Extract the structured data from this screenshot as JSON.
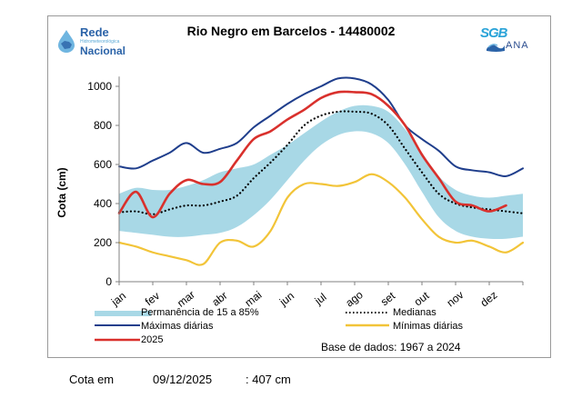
{
  "logos": {
    "left": {
      "line1": "Rede",
      "line2": "Hidrometeorológica",
      "line3": "Nacional"
    },
    "right": {
      "line1": "SGB",
      "line2": "ANA"
    }
  },
  "chart_data": {
    "type": "line",
    "title": "Rio Negro em Barcelos - 14480002",
    "xlabel": "",
    "ylabel": "Cota (cm)",
    "ylim": [
      0,
      1100
    ],
    "yticks": [
      0,
      200,
      400,
      600,
      800,
      1000
    ],
    "xlim": [
      0,
      12
    ],
    "month_labels": [
      "jan",
      "fev",
      "mar",
      "abr",
      "mai",
      "jun",
      "jul",
      "ago",
      "set",
      "out",
      "nov",
      "dez"
    ],
    "grid": false,
    "legend_position": "bottom",
    "x_months": [
      0,
      0.5,
      1,
      1.5,
      2,
      2.5,
      3,
      3.5,
      4,
      4.5,
      5,
      5.5,
      6,
      6.5,
      7,
      7.5,
      8,
      8.5,
      9,
      9.5,
      10,
      10.5,
      11,
      11.5,
      12
    ],
    "series": [
      {
        "name": "Permanência de 15 a 85%",
        "kind": "band",
        "color": "#a8d8e6",
        "upper": [
          450,
          480,
          470,
          470,
          490,
          520,
          560,
          580,
          600,
          650,
          700,
          760,
          820,
          870,
          900,
          900,
          870,
          780,
          660,
          540,
          470,
          440,
          430,
          440,
          450
        ],
        "lower": [
          260,
          250,
          240,
          230,
          230,
          240,
          250,
          280,
          340,
          420,
          520,
          620,
          700,
          750,
          770,
          760,
          710,
          600,
          460,
          330,
          260,
          230,
          220,
          220,
          230
        ]
      },
      {
        "name": "Medianas",
        "kind": "dotted",
        "color": "#000000",
        "values": [
          355,
          360,
          345,
          370,
          390,
          390,
          410,
          440,
          530,
          610,
          700,
          800,
          850,
          870,
          870,
          860,
          800,
          680,
          560,
          450,
          400,
          380,
          370,
          360,
          350
        ]
      },
      {
        "name": "Máximas diárias",
        "kind": "line",
        "color": "#1f3e8c",
        "values": [
          590,
          580,
          620,
          660,
          710,
          660,
          680,
          710,
          790,
          850,
          910,
          960,
          1000,
          1040,
          1040,
          1010,
          930,
          800,
          730,
          670,
          590,
          570,
          560,
          540,
          580
        ]
      },
      {
        "name": "Mínimas diárias",
        "kind": "line",
        "color": "#f2c438",
        "values": [
          200,
          180,
          150,
          130,
          110,
          90,
          200,
          210,
          180,
          260,
          430,
          500,
          500,
          490,
          510,
          550,
          510,
          430,
          320,
          230,
          200,
          210,
          180,
          150,
          200
        ]
      },
      {
        "name": "2025",
        "kind": "line",
        "color": "#d9302c",
        "values": [
          350,
          460,
          330,
          450,
          520,
          500,
          510,
          620,
          730,
          770,
          830,
          880,
          940,
          970,
          970,
          960,
          900,
          800,
          650,
          530,
          410,
          390,
          360,
          390,
          407
        ]
      }
    ],
    "series_2025_last_index": 23
  },
  "legend": {
    "band": "Permanência de 15 a 85%",
    "median": "Medianas",
    "max": "Máximas diárias",
    "min": "Mínimas diárias",
    "y2025": "2025"
  },
  "base_text": "Base de dados: 1967 a 2024",
  "footer": {
    "label": "Cota em",
    "date": "09/12/2025",
    "value": ": 407 cm"
  }
}
